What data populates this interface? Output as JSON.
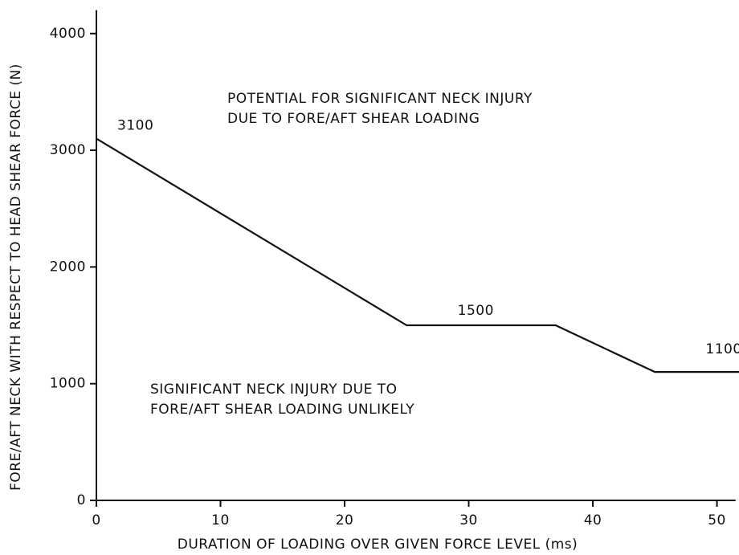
{
  "chart_data": {
    "type": "line",
    "x_label": "DURATION OF LOADING OVER GIVEN FORCE LEVEL  (ms)",
    "y_label": "FORE/AFT NECK WITH RESPECT TO HEAD SHEAR FORCE  (N)",
    "x": [
      0,
      25,
      37,
      45,
      52
    ],
    "series": [
      {
        "color": "#111111",
        "values": [
          3100,
          1500,
          1500,
          1100,
          1100
        ]
      }
    ],
    "xlim": [
      0,
      51.5
    ],
    "ylim": [
      0,
      4200
    ],
    "xticks": [
      0,
      10,
      20,
      30,
      40,
      50
    ],
    "yticks": [
      0,
      1000,
      2000,
      3000,
      4000
    ],
    "annotations": [
      {
        "lines": [
          "POTENTIAL FOR SIGNIFICANT NECK INJURY",
          "DUE TO FORE/AFT SHEAR LOADING"
        ]
      },
      {
        "lines": [
          "SIGNIFICANT NECK INJURY DUE TO",
          "FORE/AFT SHEAR LOADING UNLIKELY"
        ]
      }
    ]
  }
}
